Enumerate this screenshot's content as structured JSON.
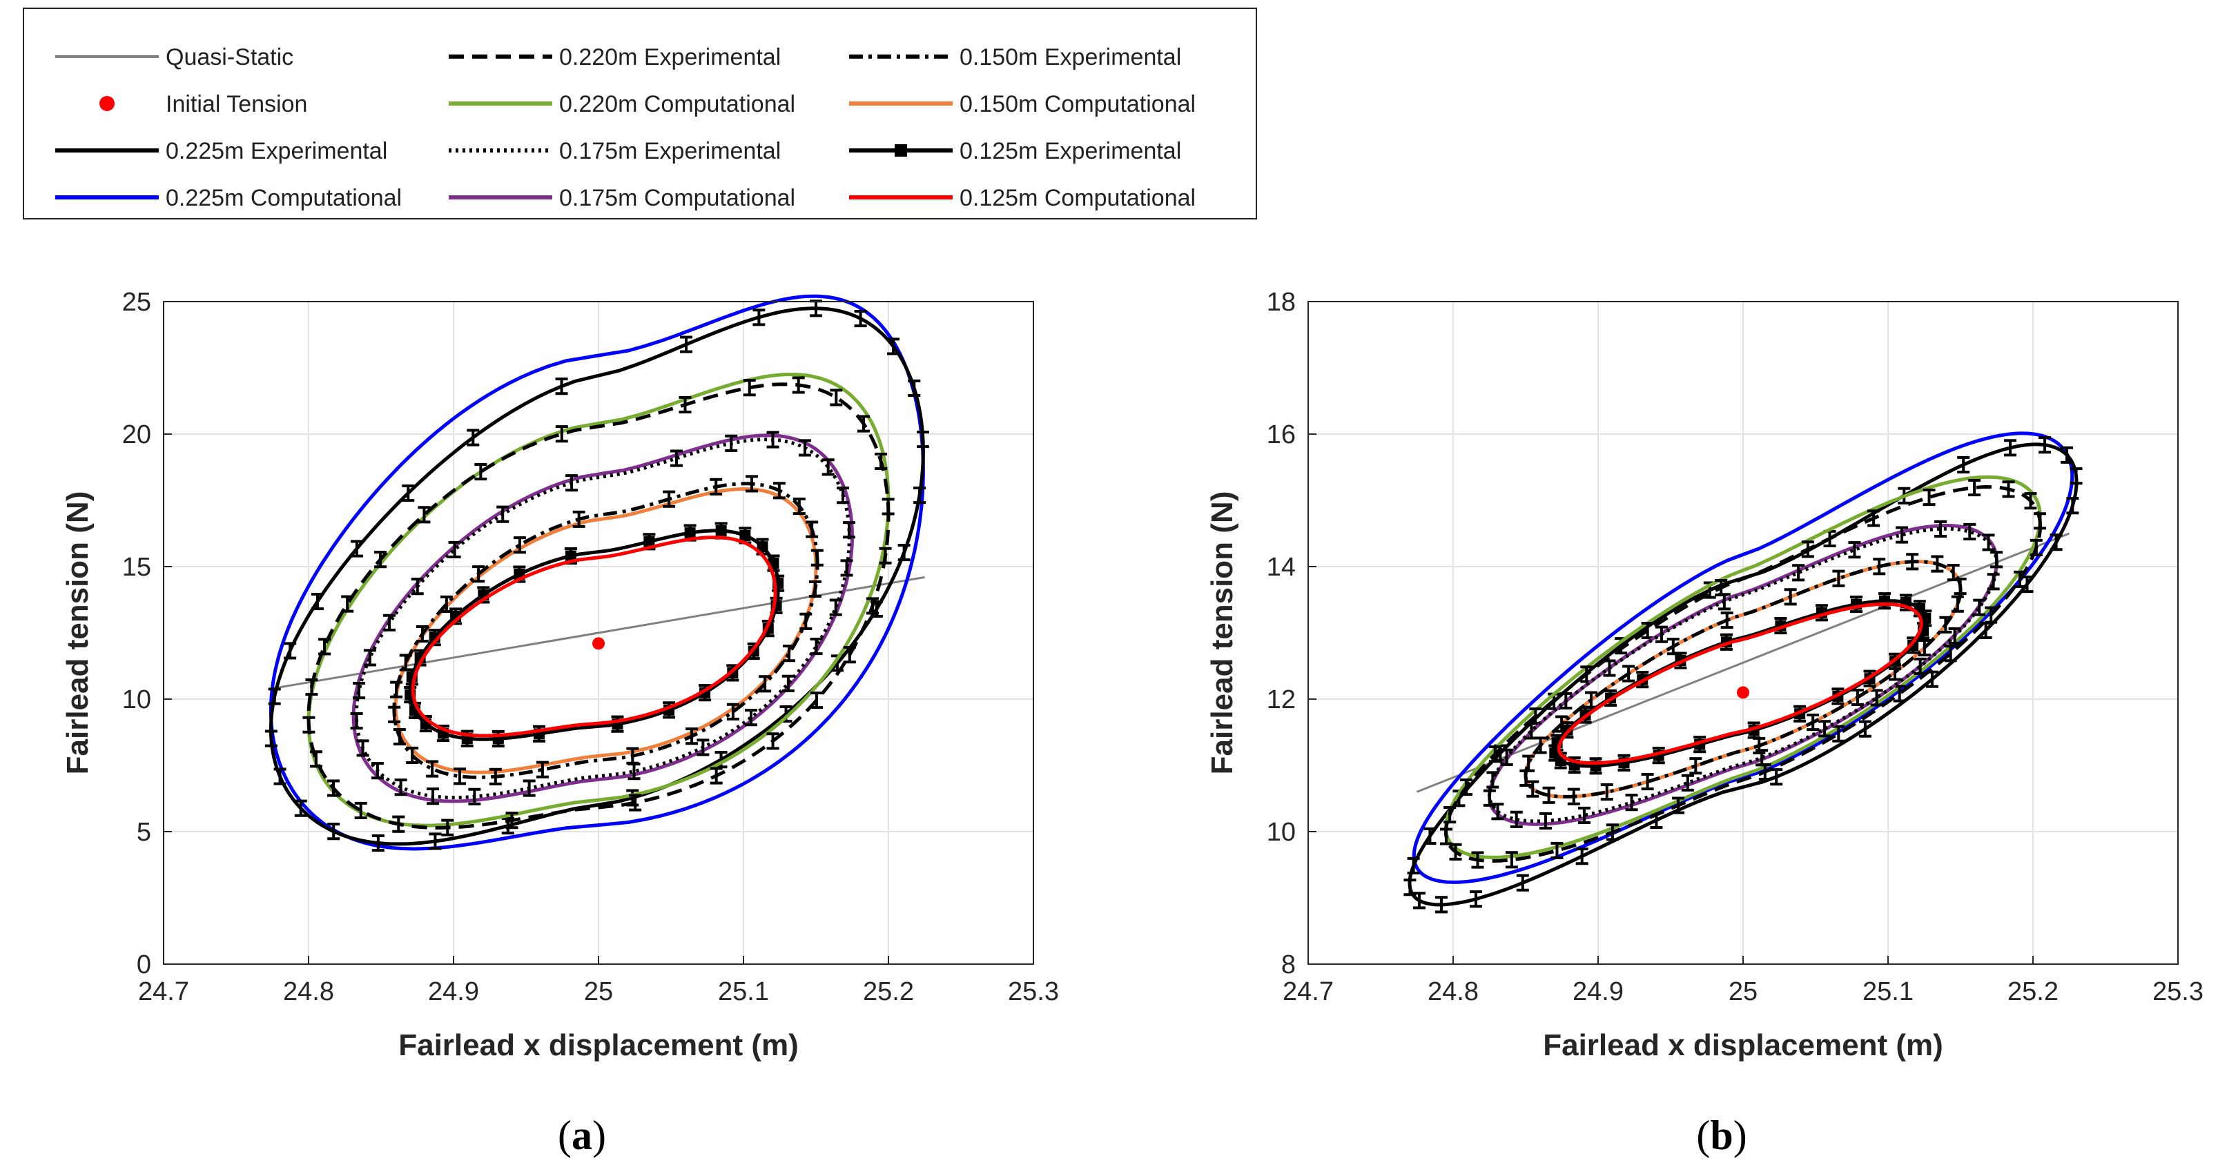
{
  "legend": [
    {
      "key": "qs",
      "label": "Quasi-Static",
      "color": "#808080",
      "style": "solid"
    },
    {
      "key": "init",
      "label": "Initial Tension",
      "color": "#ff0000",
      "style": "marker"
    },
    {
      "key": "e225",
      "label": "0.225m Experimental",
      "color": "#000000",
      "style": "solid-thick"
    },
    {
      "key": "c225",
      "label": "0.225m Computational",
      "color": "#0000ff",
      "style": "solid"
    },
    {
      "key": "e220",
      "label": "0.220m Experimental",
      "color": "#000000",
      "style": "dashed"
    },
    {
      "key": "c220",
      "label": "0.220m Computational",
      "color": "#77ac30",
      "style": "solid"
    },
    {
      "key": "e175",
      "label": "0.175m Experimental",
      "color": "#000000",
      "style": "dotted"
    },
    {
      "key": "c175",
      "label": "0.175m Computational",
      "color": "#7e2f8e",
      "style": "solid"
    },
    {
      "key": "e150",
      "label": "0.150m Experimental",
      "color": "#000000",
      "style": "dashdot"
    },
    {
      "key": "c150",
      "label": "0.150m Computational",
      "color": "#f07f3c",
      "style": "solid"
    },
    {
      "key": "e125",
      "label": "0.125m Experimental",
      "color": "#000000",
      "style": "square-marker"
    },
    {
      "key": "c125",
      "label": "0.125m Computational",
      "color": "#ff0000",
      "style": "solid"
    }
  ],
  "chart_data": [
    {
      "type": "line",
      "panel": "(a)",
      "xlabel": "Fairlead x displacement (m)",
      "ylabel": "Fairlead tension (N)",
      "xlim": [
        24.7,
        25.3
      ],
      "ylim": [
        0,
        25
      ],
      "xticks": [
        "24.7",
        "24.8",
        "24.9",
        "25",
        "25.1",
        "25.2",
        "25.3"
      ],
      "yticks": [
        "0",
        "5",
        "10",
        "15",
        "20",
        "25"
      ],
      "grid": true,
      "quasi_static": {
        "x": [
          24.775,
          25.225
        ],
        "y": [
          10.4,
          14.6
        ]
      },
      "initial_tension": {
        "x": 25.0,
        "y": 12.1
      },
      "series": [
        {
          "key": "c225",
          "name": "0.225m Computational",
          "cx": 24.999,
          "cy": 14.1,
          "a": 0.225,
          "b": 10.6,
          "phase": 0.5,
          "h2": 0.08,
          "h3": -0.03,
          "exp": 1.55,
          "errorbars": false
        },
        {
          "key": "e225",
          "name": "0.225m Experimental",
          "cx": 24.999,
          "cy": 14.1,
          "a": 0.225,
          "b": 10.3,
          "phase": 0.6,
          "h2": 0.06,
          "h3": -0.03,
          "exp": 1.35,
          "errorbars": true
        },
        {
          "key": "c220",
          "name": "0.220m Computational",
          "cx": 25.0,
          "cy": 13.3,
          "a": 0.2,
          "b": 8.75,
          "phase": 0.55,
          "h2": 0.06,
          "h3": -0.02,
          "exp": 1.45,
          "errorbars": false
        },
        {
          "key": "e220",
          "name": "0.220m Experimental",
          "cx": 25.0,
          "cy": 13.1,
          "a": 0.2,
          "b": 8.6,
          "phase": 0.5,
          "h2": 0.06,
          "h3": -0.02,
          "exp": 1.45,
          "errorbars": true
        },
        {
          "key": "c175",
          "name": "0.175m Computational",
          "cx": 25.003,
          "cy": 12.75,
          "a": 0.172,
          "b": 7.1,
          "phase": 0.55,
          "h2": 0.05,
          "h3": -0.02,
          "exp": 1.45,
          "errorbars": false
        },
        {
          "key": "e175",
          "name": "0.175m Experimental",
          "cx": 25.003,
          "cy": 12.75,
          "a": 0.17,
          "b": 6.95,
          "phase": 0.55,
          "h2": 0.05,
          "h3": -0.02,
          "exp": 1.45,
          "errorbars": true
        },
        {
          "key": "c150",
          "name": "0.150m Computational",
          "cx": 25.005,
          "cy": 12.35,
          "a": 0.145,
          "b": 5.5,
          "phase": 0.55,
          "h2": 0.05,
          "h3": -0.02,
          "exp": 1.45,
          "errorbars": false
        },
        {
          "key": "e150",
          "name": "0.150m Experimental",
          "cx": 25.005,
          "cy": 12.35,
          "a": 0.146,
          "b": 5.7,
          "phase": 0.55,
          "h2": 0.05,
          "h3": -0.02,
          "exp": 1.45,
          "errorbars": true
        },
        {
          "key": "e125",
          "name": "0.125m Experimental",
          "cx": 24.997,
          "cy": 12.25,
          "a": 0.127,
          "b": 4.05,
          "phase": 0.55,
          "h2": 0.05,
          "h3": -0.02,
          "exp": 1.45,
          "errorbars": true
        },
        {
          "key": "c125",
          "name": "0.125m Computational",
          "cx": 24.997,
          "cy": 12.2,
          "a": 0.125,
          "b": 3.85,
          "phase": 0.55,
          "h2": 0.05,
          "h3": -0.02,
          "exp": 1.45,
          "errorbars": false
        }
      ]
    },
    {
      "type": "line",
      "panel": "(b)",
      "xlabel": "Fairlead x displacement (m)",
      "ylabel": "Fairlead tension (N)",
      "xlim": [
        24.7,
        25.3
      ],
      "ylim": [
        8,
        18
      ],
      "xticks": [
        "24.7",
        "24.8",
        "24.9",
        "25",
        "25.1",
        "25.2",
        "25.3"
      ],
      "yticks": [
        "8",
        "10",
        "12",
        "14",
        "16",
        "18"
      ],
      "grid": true,
      "quasi_static": {
        "x": [
          24.775,
          25.225
        ],
        "y": [
          10.6,
          14.5
        ]
      },
      "initial_tension": {
        "x": 25.0,
        "y": 12.1
      },
      "series": [
        {
          "key": "c225",
          "name": "0.225m Computational",
          "cx": 25.0,
          "cy": 12.5,
          "a": 0.227,
          "b": 3.55,
          "phase": 1.05,
          "h2": 0.04,
          "h3": -0.02,
          "exp": 1.2,
          "errorbars": false
        },
        {
          "key": "e225",
          "name": "0.225m Experimental",
          "cx": 25.0,
          "cy": 12.25,
          "a": 0.23,
          "b": 3.65,
          "phase": 1.1,
          "h2": 0.04,
          "h3": -0.02,
          "exp": 1.3,
          "errorbars": true
        },
        {
          "key": "c220",
          "name": "0.220m Computational",
          "cx": 25.0,
          "cy": 12.4,
          "a": 0.205,
          "b": 3.0,
          "phase": 1.0,
          "h2": 0.03,
          "h3": -0.02,
          "exp": 1.15,
          "errorbars": false
        },
        {
          "key": "e220",
          "name": "0.220m Experimental",
          "cx": 25.0,
          "cy": 12.3,
          "a": 0.205,
          "b": 2.95,
          "phase": 1.0,
          "h2": 0.03,
          "h3": -0.02,
          "exp": 1.15,
          "errorbars": true
        },
        {
          "key": "c175",
          "name": "0.175m Computational",
          "cx": 25.0,
          "cy": 12.3,
          "a": 0.175,
          "b": 2.35,
          "phase": 0.95,
          "h2": 0.03,
          "h3": -0.02,
          "exp": 1.15,
          "errorbars": false
        },
        {
          "key": "e175",
          "name": "0.175m Experimental",
          "cx": 25.0,
          "cy": 12.3,
          "a": 0.175,
          "b": 2.3,
          "phase": 0.95,
          "h2": 0.03,
          "h3": -0.02,
          "exp": 1.15,
          "errorbars": true
        },
        {
          "key": "c150",
          "name": "0.150m Computational",
          "cx": 25.0,
          "cy": 12.25,
          "a": 0.15,
          "b": 1.85,
          "phase": 0.95,
          "h2": 0.03,
          "h3": -0.02,
          "exp": 1.15,
          "errorbars": false
        },
        {
          "key": "e150",
          "name": "0.150m Experimental",
          "cx": 25.0,
          "cy": 12.25,
          "a": 0.15,
          "b": 1.85,
          "phase": 0.95,
          "h2": 0.03,
          "h3": -0.02,
          "exp": 1.15,
          "errorbars": true
        },
        {
          "key": "e125",
          "name": "0.125m Experimental",
          "cx": 24.998,
          "cy": 12.2,
          "a": 0.128,
          "b": 1.3,
          "phase": 0.95,
          "h2": 0.03,
          "h3": -0.02,
          "exp": 1.15,
          "errorbars": true
        },
        {
          "key": "c125",
          "name": "0.125m Computational",
          "cx": 24.998,
          "cy": 12.2,
          "a": 0.125,
          "b": 1.25,
          "phase": 0.95,
          "h2": 0.03,
          "h3": -0.02,
          "exp": 1.15,
          "errorbars": false
        }
      ]
    }
  ]
}
